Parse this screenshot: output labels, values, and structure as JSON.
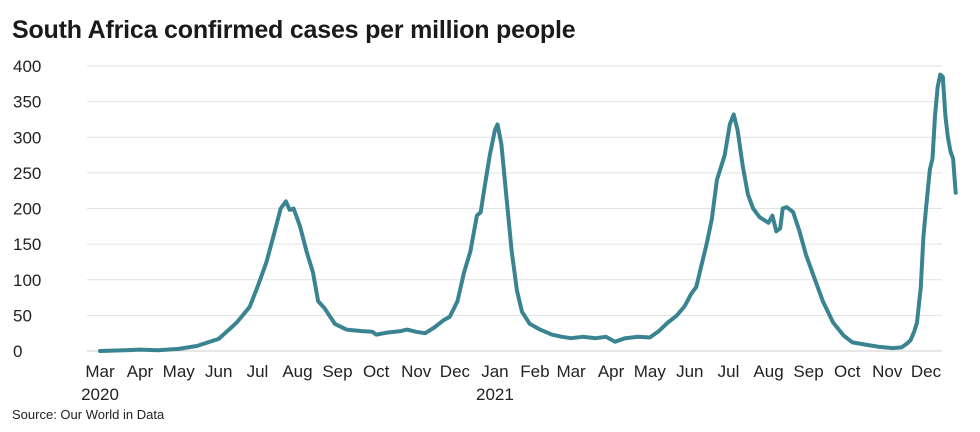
{
  "title": "South Africa confirmed cases per million people",
  "source": "Source: Our World in Data",
  "colors": {
    "line": "#3a8491",
    "grid": "#e2e2e2",
    "axis": "#cfcfcf",
    "text": "#222222"
  },
  "chart_data": {
    "type": "line",
    "title": "South Africa confirmed cases per million people",
    "xlabel": "",
    "ylabel": "",
    "ylim": [
      0,
      400
    ],
    "yticks": [
      0,
      50,
      100,
      150,
      200,
      250,
      300,
      350,
      400
    ],
    "grid": true,
    "legend": "none",
    "xticks": [
      {
        "label": "Mar",
        "sub": "2020",
        "x": "2020-03-01"
      },
      {
        "label": "Apr",
        "sub": "",
        "x": "2020-04-01"
      },
      {
        "label": "May",
        "sub": "",
        "x": "2020-05-01"
      },
      {
        "label": "Jun",
        "sub": "",
        "x": "2020-06-01"
      },
      {
        "label": "Jul",
        "sub": "",
        "x": "2020-07-01"
      },
      {
        "label": "Aug",
        "sub": "",
        "x": "2020-08-01"
      },
      {
        "label": "Sep",
        "sub": "",
        "x": "2020-09-01"
      },
      {
        "label": "Oct",
        "sub": "",
        "x": "2020-10-01"
      },
      {
        "label": "Nov",
        "sub": "",
        "x": "2020-11-01"
      },
      {
        "label": "Dec",
        "sub": "",
        "x": "2020-12-01"
      },
      {
        "label": "Jan",
        "sub": "2021",
        "x": "2021-01-01"
      },
      {
        "label": "Feb",
        "sub": "",
        "x": "2021-02-01"
      },
      {
        "label": "Mar",
        "sub": "",
        "x": "2021-03-01"
      },
      {
        "label": "Apr",
        "sub": "",
        "x": "2021-04-01"
      },
      {
        "label": "May",
        "sub": "",
        "x": "2021-05-01"
      },
      {
        "label": "Jun",
        "sub": "",
        "x": "2021-06-01"
      },
      {
        "label": "Jul",
        "sub": "",
        "x": "2021-07-01"
      },
      {
        "label": "Aug",
        "sub": "",
        "x": "2021-08-01"
      },
      {
        "label": "Sep",
        "sub": "",
        "x": "2021-09-01"
      },
      {
        "label": "Oct",
        "sub": "",
        "x": "2021-10-01"
      },
      {
        "label": "Nov",
        "sub": "",
        "x": "2021-11-01"
      },
      {
        "label": "Dec",
        "sub": "",
        "x": "2021-12-01"
      }
    ],
    "series": [
      {
        "name": "",
        "points": [
          [
            "2020-03-01",
            0
          ],
          [
            "2020-03-20",
            1
          ],
          [
            "2020-04-01",
            2
          ],
          [
            "2020-04-15",
            1
          ],
          [
            "2020-05-01",
            3
          ],
          [
            "2020-05-15",
            7
          ],
          [
            "2020-06-01",
            17
          ],
          [
            "2020-06-15",
            40
          ],
          [
            "2020-06-25",
            62
          ],
          [
            "2020-07-01",
            90
          ],
          [
            "2020-07-08",
            125
          ],
          [
            "2020-07-14",
            165
          ],
          [
            "2020-07-19",
            200
          ],
          [
            "2020-07-23",
            210
          ],
          [
            "2020-07-26",
            198
          ],
          [
            "2020-07-29",
            200
          ],
          [
            "2020-08-03",
            175
          ],
          [
            "2020-08-08",
            140
          ],
          [
            "2020-08-13",
            110
          ],
          [
            "2020-08-17",
            70
          ],
          [
            "2020-08-22",
            60
          ],
          [
            "2020-08-30",
            38
          ],
          [
            "2020-09-08",
            30
          ],
          [
            "2020-09-20",
            28
          ],
          [
            "2020-09-28",
            27
          ],
          [
            "2020-10-01",
            23
          ],
          [
            "2020-10-10",
            26
          ],
          [
            "2020-10-20",
            28
          ],
          [
            "2020-10-25",
            30
          ],
          [
            "2020-11-01",
            27
          ],
          [
            "2020-11-08",
            25
          ],
          [
            "2020-11-15",
            33
          ],
          [
            "2020-11-22",
            43
          ],
          [
            "2020-11-27",
            48
          ],
          [
            "2020-12-03",
            70
          ],
          [
            "2020-12-08",
            110
          ],
          [
            "2020-12-13",
            140
          ],
          [
            "2020-12-18",
            190
          ],
          [
            "2020-12-21",
            195
          ],
          [
            "2020-12-24",
            230
          ],
          [
            "2020-12-28",
            275
          ],
          [
            "2021-01-01",
            310
          ],
          [
            "2021-01-03",
            318
          ],
          [
            "2021-01-06",
            290
          ],
          [
            "2021-01-10",
            215
          ],
          [
            "2021-01-14",
            140
          ],
          [
            "2021-01-18",
            85
          ],
          [
            "2021-01-22",
            55
          ],
          [
            "2021-01-28",
            38
          ],
          [
            "2021-02-05",
            30
          ],
          [
            "2021-02-14",
            23
          ],
          [
            "2021-02-22",
            20
          ],
          [
            "2021-03-01",
            18
          ],
          [
            "2021-03-10",
            20
          ],
          [
            "2021-03-20",
            18
          ],
          [
            "2021-03-28",
            20
          ],
          [
            "2021-04-04",
            13
          ],
          [
            "2021-04-12",
            18
          ],
          [
            "2021-04-22",
            20
          ],
          [
            "2021-05-01",
            19
          ],
          [
            "2021-05-08",
            28
          ],
          [
            "2021-05-15",
            40
          ],
          [
            "2021-05-22",
            50
          ],
          [
            "2021-05-28",
            63
          ],
          [
            "2021-06-02",
            80
          ],
          [
            "2021-06-06",
            90
          ],
          [
            "2021-06-10",
            120
          ],
          [
            "2021-06-14",
            150
          ],
          [
            "2021-06-18",
            185
          ],
          [
            "2021-06-22",
            240
          ],
          [
            "2021-06-28",
            275
          ],
          [
            "2021-07-02",
            318
          ],
          [
            "2021-07-05",
            332
          ],
          [
            "2021-07-08",
            310
          ],
          [
            "2021-07-12",
            260
          ],
          [
            "2021-07-16",
            220
          ],
          [
            "2021-07-20",
            200
          ],
          [
            "2021-07-25",
            188
          ],
          [
            "2021-08-01",
            180
          ],
          [
            "2021-08-04",
            190
          ],
          [
            "2021-08-07",
            168
          ],
          [
            "2021-08-10",
            172
          ],
          [
            "2021-08-12",
            200
          ],
          [
            "2021-08-15",
            202
          ],
          [
            "2021-08-20",
            195
          ],
          [
            "2021-08-25",
            168
          ],
          [
            "2021-08-30",
            135
          ],
          [
            "2021-09-05",
            105
          ],
          [
            "2021-09-12",
            70
          ],
          [
            "2021-09-20",
            40
          ],
          [
            "2021-09-28",
            22
          ],
          [
            "2021-10-05",
            12
          ],
          [
            "2021-10-15",
            9
          ],
          [
            "2021-10-25",
            6
          ],
          [
            "2021-11-05",
            4
          ],
          [
            "2021-11-12",
            5
          ],
          [
            "2021-11-16",
            10
          ],
          [
            "2021-11-19",
            15
          ],
          [
            "2021-11-22",
            28
          ],
          [
            "2021-11-24",
            40
          ],
          [
            "2021-11-27",
            90
          ],
          [
            "2021-11-29",
            160
          ],
          [
            "2021-12-01",
            200
          ],
          [
            "2021-12-04",
            255
          ],
          [
            "2021-12-06",
            270
          ],
          [
            "2021-12-08",
            330
          ],
          [
            "2021-12-10",
            370
          ],
          [
            "2021-12-12",
            388
          ],
          [
            "2021-12-14",
            385
          ],
          [
            "2021-12-16",
            330
          ],
          [
            "2021-12-18",
            300
          ],
          [
            "2021-12-20",
            280
          ],
          [
            "2021-12-22",
            270
          ],
          [
            "2021-12-24",
            222
          ]
        ]
      }
    ]
  }
}
